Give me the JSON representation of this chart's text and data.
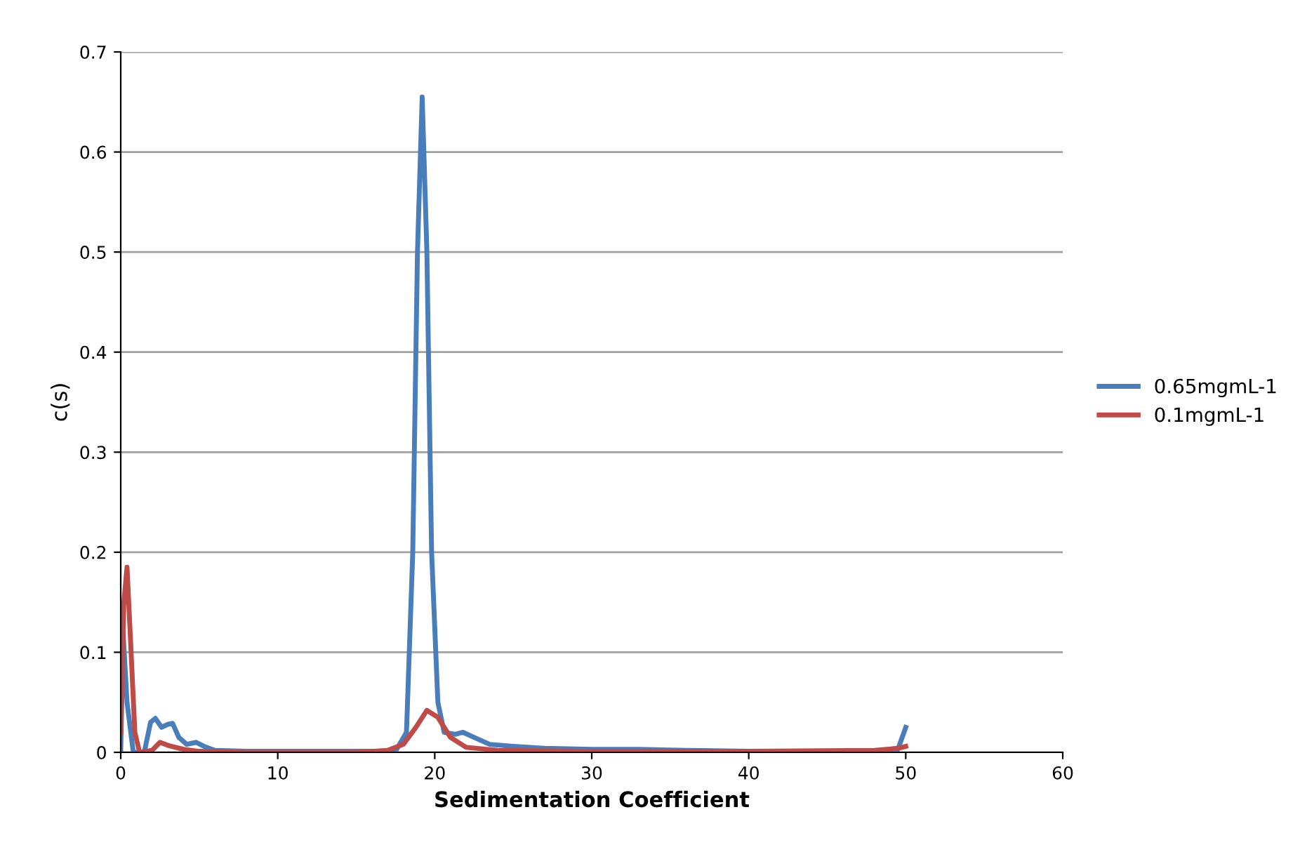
{
  "chart_data": {
    "type": "line",
    "xlabel": "Sedimentation Coefficient",
    "ylabel": "c(s)",
    "xlim": [
      0,
      60
    ],
    "xticks": [
      0,
      10,
      20,
      30,
      40,
      50,
      60
    ],
    "ylim": [
      0,
      0.7
    ],
    "yticks": [
      0,
      0.1,
      0.2,
      0.3,
      0.4,
      0.5,
      0.6,
      0.7
    ],
    "grid": "y",
    "legend": "right",
    "marker": "none",
    "line_style": "solid",
    "series": [
      {
        "name": "0.65mgmL-1",
        "color": "#4a7ebb",
        "x": [
          0,
          0.15,
          0.4,
          0.8,
          1.5,
          1.9,
          2.2,
          2.6,
          3.0,
          3.3,
          3.7,
          4.2,
          4.8,
          5.3,
          6,
          8,
          10,
          15,
          17.5,
          18.2,
          18.6,
          18.9,
          19.2,
          19.5,
          19.8,
          20.2,
          20.6,
          21.3,
          21.8,
          22.5,
          23.5,
          25,
          27,
          30,
          33,
          36,
          40,
          45,
          48,
          49.5,
          50
        ],
        "values": [
          0,
          0.12,
          0.05,
          0,
          0,
          0.03,
          0.034,
          0.025,
          0.028,
          0.029,
          0.015,
          0.008,
          0.01,
          0.006,
          0.002,
          0.001,
          0.001,
          0.001,
          0.001,
          0.02,
          0.2,
          0.5,
          0.655,
          0.5,
          0.2,
          0.05,
          0.02,
          0.018,
          0.02,
          0.015,
          0.008,
          0.006,
          0.004,
          0.003,
          0.003,
          0.002,
          0.001,
          0.001,
          0.001,
          0.003,
          0.025
        ]
      },
      {
        "name": "0.1mgmL-1",
        "color": "#be4b48",
        "x": [
          0,
          0.2,
          0.4,
          0.6,
          0.9,
          1.2,
          2,
          2.5,
          3,
          4,
          5,
          8,
          15,
          17,
          18,
          18.8,
          19.5,
          20.2,
          21,
          22,
          24,
          30,
          40,
          48,
          49.5,
          50
        ],
        "values": [
          0.02,
          0.15,
          0.185,
          0.12,
          0.02,
          0,
          0.002,
          0.01,
          0.007,
          0.003,
          0.001,
          0,
          0,
          0.002,
          0.008,
          0.025,
          0.042,
          0.035,
          0.015,
          0.005,
          0.002,
          0.001,
          0.001,
          0.002,
          0.004,
          0.006
        ]
      }
    ]
  }
}
